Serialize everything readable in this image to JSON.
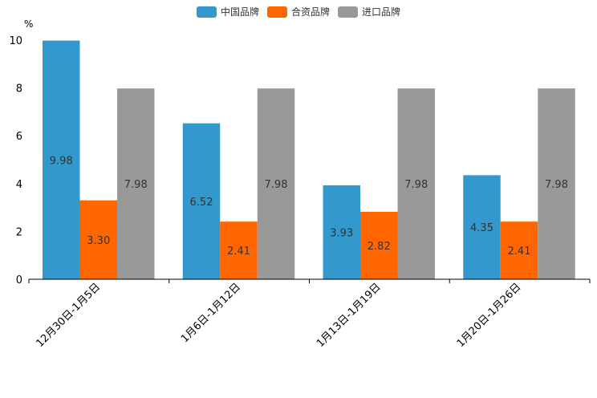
{
  "chart_data": {
    "type": "bar",
    "ylabel": "%",
    "ylim": [
      0,
      10
    ],
    "yticks": [
      "0",
      "2",
      "4",
      "6",
      "8",
      "10"
    ],
    "categories": [
      "12月30日-1月5日",
      "1月6日-1月12日",
      "1月13日-1月19日",
      "1月20日-1月26日"
    ],
    "series": [
      {
        "name": "中国品牌",
        "color": "#3398cc",
        "values": [
          9.98,
          6.52,
          3.93,
          4.35
        ],
        "labels": [
          "9.98",
          "6.52",
          "3.93",
          "4.35"
        ]
      },
      {
        "name": "合资品牌",
        "color": "#ff6600",
        "values": [
          3.3,
          2.41,
          2.82,
          2.41
        ],
        "labels": [
          "3.30",
          "2.41",
          "2.82",
          "2.41"
        ]
      },
      {
        "name": "进口品牌",
        "color": "#999999",
        "values": [
          7.98,
          7.98,
          7.98,
          7.98
        ],
        "labels": [
          "7.98",
          "7.98",
          "7.98",
          "7.98"
        ]
      }
    ],
    "legend": "top-center",
    "grid": false
  }
}
